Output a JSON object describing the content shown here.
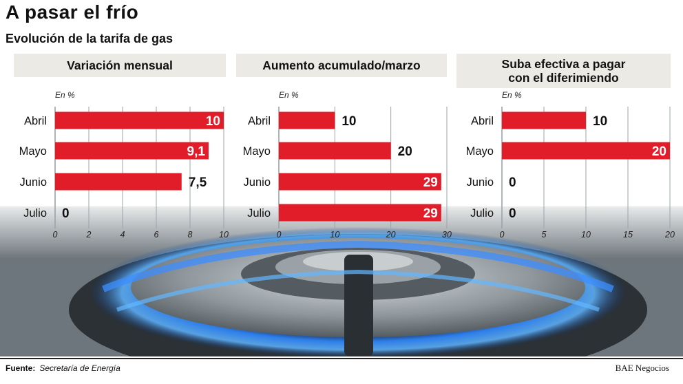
{
  "title": "A pasar el frío",
  "subtitle": "Evolución de la tarifa de gas",
  "colors": {
    "bar": "#e11d2a",
    "header_bg": "#eceae4",
    "grid": "#9aa3aa",
    "flame": "#1e6fd8"
  },
  "chart_data": [
    {
      "type": "bar",
      "title": "Variación mensual",
      "unit_label": "En %",
      "categories": [
        "Abril",
        "Mayo",
        "Junio",
        "Julio"
      ],
      "values": [
        10,
        9.1,
        7.5,
        0
      ],
      "value_labels": [
        "10",
        "9,1",
        "7,5",
        "0"
      ],
      "xlim": [
        0,
        10
      ],
      "ticks": [
        0,
        2,
        4,
        6,
        8,
        10
      ],
      "tick_labels": [
        "0",
        "2",
        "4",
        "6",
        "8",
        "10"
      ],
      "grid": true
    },
    {
      "type": "bar",
      "title": "Aumento acumulado/marzo",
      "unit_label": "En %",
      "categories": [
        "Abril",
        "Mayo",
        "Junio",
        "Julio"
      ],
      "values": [
        10,
        20,
        29,
        29
      ],
      "value_labels": [
        "10",
        "20",
        "29",
        "29"
      ],
      "xlim": [
        0,
        30
      ],
      "ticks": [
        0,
        10,
        20,
        30
      ],
      "tick_labels": [
        "0",
        "10",
        "20",
        "30"
      ],
      "grid": true
    },
    {
      "type": "bar",
      "title": "Suba efectiva a pagar con el diferimiendo",
      "unit_label": "En %",
      "categories": [
        "Abril",
        "Mayo",
        "Junio",
        "Julio"
      ],
      "values": [
        10,
        20,
        0,
        0
      ],
      "value_labels": [
        "10",
        "20",
        "0",
        "0"
      ],
      "xlim": [
        0,
        20
      ],
      "ticks": [
        0,
        5,
        10,
        15,
        20
      ],
      "tick_labels": [
        "0",
        "5",
        "10",
        "15",
        "20"
      ],
      "grid": true
    }
  ],
  "footer": {
    "source_label": "Fuente:",
    "source_text": "Secretaría de Energía",
    "credit": "BAE Negocios"
  }
}
